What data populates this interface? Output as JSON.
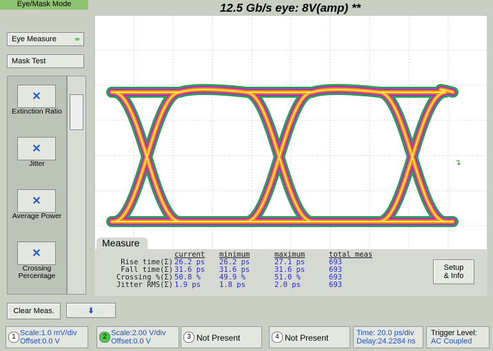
{
  "title": "12.5 Gb/s eye: 8V(amp) **",
  "sidebar": {
    "mode": "Eye/Mask Mode",
    "eye_measure": "Eye Measure",
    "mask_test": "Mask Test",
    "tools": [
      "Extinction Ratio",
      "Jitter",
      "Average Power",
      "Crossing Percentage"
    ]
  },
  "measure": {
    "tab": "Measure",
    "headers": [
      "current",
      "minimum",
      "maximum",
      "total meas"
    ],
    "rows": [
      [
        "Rise time(Σ)",
        "26.2 ps",
        "26.2 ps",
        "27.1 ps",
        "693"
      ],
      [
        "Fall time(Σ)",
        "31.6 ps",
        "31.6 ps",
        "31.6 ps",
        "693"
      ],
      [
        "Crossing %(Σ)",
        "50.8 %",
        "49.9 %",
        "51.0 %",
        "693"
      ],
      [
        "Jitter RMS(Σ)",
        "1.9 ps",
        "1.8 ps",
        "2.0 ps",
        "693"
      ]
    ],
    "setup": [
      "Setup",
      "& Info"
    ]
  },
  "clear": "Clear Meas.",
  "status": {
    "ch1": {
      "num": "1",
      "scale": "Scale:1.0 mV/div",
      "offset": "Offset:0.0 V"
    },
    "ch2": {
      "num": "2",
      "scale": "Scale:2.00 V/div",
      "offset": "Offset:0.0 V"
    },
    "ch3": {
      "num": "3",
      "text": "Not Present"
    },
    "ch4": {
      "num": "4",
      "text": "Not Present"
    },
    "time": "Time: 20.0 ps/div",
    "delay": "Delay:24.2284 ns",
    "trigger": "Trigger Level:",
    "coupling": "AC Coupled"
  }
}
